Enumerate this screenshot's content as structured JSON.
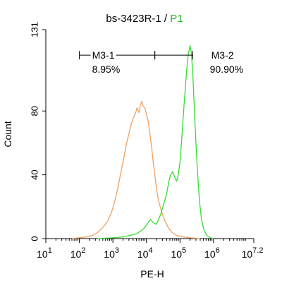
{
  "chart_data": {
    "type": "histogram",
    "title_prefix": "bs-3423R-1 / ",
    "title_gate": "P1",
    "xlabel": "PE-H",
    "ylabel": "Count",
    "x_scale": "log",
    "x_range_log10": [
      1,
      7.2
    ],
    "y_range": [
      0,
      131
    ],
    "y_ticks": [
      {
        "label": "0",
        "value": 0
      },
      {
        "label": "40",
        "value": 40
      },
      {
        "label": "80",
        "value": 80
      },
      {
        "label": "131",
        "value": 131
      }
    ],
    "x_ticks": [
      {
        "base": "10",
        "exp": "1",
        "value": 1
      },
      {
        "base": "10",
        "exp": "2",
        "value": 2
      },
      {
        "base": "10",
        "exp": "3",
        "value": 3
      },
      {
        "base": "10",
        "exp": "4",
        "value": 4
      },
      {
        "base": "10",
        "exp": "5",
        "value": 5
      },
      {
        "base": "10",
        "exp": "6",
        "value": 6
      },
      {
        "base": "10",
        "exp": "7.2",
        "value": 7.2
      }
    ],
    "markers": [
      {
        "name": "M3-1",
        "percent": "8.95%",
        "start_log10": 2.0,
        "end_log10": 4.25
      },
      {
        "name": "M3-2",
        "percent": "90.90%",
        "start_log10": 4.25,
        "end_log10": 5.38
      }
    ],
    "marker_y": 115,
    "series": [
      {
        "color": "#f0a060",
        "points": [
          [
            1.78,
            0
          ],
          [
            2.0,
            0.5
          ],
          [
            2.2,
            1
          ],
          [
            2.4,
            2
          ],
          [
            2.55,
            4
          ],
          [
            2.7,
            7
          ],
          [
            2.85,
            11
          ],
          [
            2.95,
            16
          ],
          [
            3.05,
            23
          ],
          [
            3.15,
            32
          ],
          [
            3.25,
            43
          ],
          [
            3.32,
            50
          ],
          [
            3.4,
            59
          ],
          [
            3.48,
            66
          ],
          [
            3.55,
            72
          ],
          [
            3.6,
            75
          ],
          [
            3.68,
            79
          ],
          [
            3.72,
            82
          ],
          [
            3.78,
            79
          ],
          [
            3.82,
            84
          ],
          [
            3.86,
            86
          ],
          [
            3.9,
            83
          ],
          [
            3.95,
            82
          ],
          [
            4.0,
            78
          ],
          [
            4.05,
            74
          ],
          [
            4.1,
            66
          ],
          [
            4.15,
            58
          ],
          [
            4.2,
            48
          ],
          [
            4.25,
            40
          ],
          [
            4.3,
            31
          ],
          [
            4.37,
            23
          ],
          [
            4.45,
            17
          ],
          [
            4.55,
            11
          ],
          [
            4.65,
            7
          ],
          [
            4.75,
            4
          ],
          [
            4.9,
            2
          ],
          [
            5.1,
            1
          ],
          [
            5.3,
            0.5
          ],
          [
            5.6,
            0
          ]
        ]
      },
      {
        "color": "#33dd33",
        "points": [
          [
            2.55,
            0
          ],
          [
            3.0,
            0.5
          ],
          [
            3.3,
            1
          ],
          [
            3.5,
            2
          ],
          [
            3.7,
            3
          ],
          [
            3.85,
            5
          ],
          [
            3.95,
            7
          ],
          [
            4.05,
            10
          ],
          [
            4.12,
            12
          ],
          [
            4.2,
            10
          ],
          [
            4.3,
            9
          ],
          [
            4.42,
            15
          ],
          [
            4.52,
            22
          ],
          [
            4.6,
            28
          ],
          [
            4.67,
            36
          ],
          [
            4.72,
            40
          ],
          [
            4.78,
            42
          ],
          [
            4.85,
            38
          ],
          [
            4.9,
            36
          ],
          [
            4.95,
            40
          ],
          [
            5.0,
            48
          ],
          [
            5.05,
            62
          ],
          [
            5.1,
            78
          ],
          [
            5.15,
            92
          ],
          [
            5.2,
            106
          ],
          [
            5.25,
            116
          ],
          [
            5.3,
            121
          ],
          [
            5.34,
            116
          ],
          [
            5.38,
            104
          ],
          [
            5.42,
            85
          ],
          [
            5.47,
            62
          ],
          [
            5.52,
            42
          ],
          [
            5.58,
            24
          ],
          [
            5.64,
            12
          ],
          [
            5.72,
            5
          ],
          [
            5.8,
            2
          ],
          [
            5.9,
            0.5
          ],
          [
            6.0,
            0
          ]
        ]
      }
    ]
  }
}
